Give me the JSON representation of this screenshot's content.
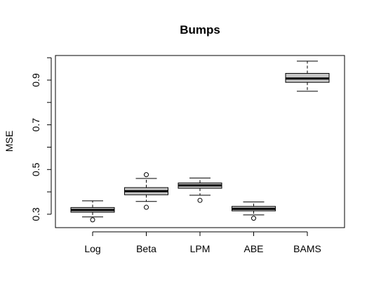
{
  "chart_data": {
    "type": "boxplot",
    "title": "Bumps",
    "xlabel": "",
    "ylabel": "MSE",
    "ylim": [
      0.24,
      1.01
    ],
    "yticks": [
      0.3,
      0.5,
      0.7,
      0.9
    ],
    "ytick_labels": [
      "0.3",
      "0.5",
      "0.7",
      "0.9"
    ],
    "categories": [
      "Log",
      "Beta",
      "LPM",
      "ABE",
      "BAMS"
    ],
    "boxes": [
      {
        "category": "Log",
        "whisker_low": 0.288,
        "q1": 0.309,
        "median": 0.319,
        "q3": 0.33,
        "whisker_high": 0.36,
        "outliers": [
          0.275
        ]
      },
      {
        "category": "Beta",
        "whisker_low": 0.357,
        "q1": 0.387,
        "median": 0.403,
        "q3": 0.419,
        "whisker_high": 0.46,
        "outliers": [
          0.477,
          0.331
        ]
      },
      {
        "category": "LPM",
        "whisker_low": 0.385,
        "q1": 0.416,
        "median": 0.429,
        "q3": 0.44,
        "whisker_high": 0.462,
        "outliers": [
          0.362
        ]
      },
      {
        "category": "ABE",
        "whisker_low": 0.297,
        "q1": 0.315,
        "median": 0.324,
        "q3": 0.335,
        "whisker_high": 0.355,
        "outliers": [
          0.282
        ]
      },
      {
        "category": "BAMS",
        "whisker_low": 0.85,
        "q1": 0.89,
        "median": 0.907,
        "q3": 0.93,
        "whisker_high": 0.985,
        "outliers": []
      }
    ],
    "box_fill": "#c8c8c8",
    "line_color": "#000000",
    "grid": false,
    "legend": "none"
  }
}
